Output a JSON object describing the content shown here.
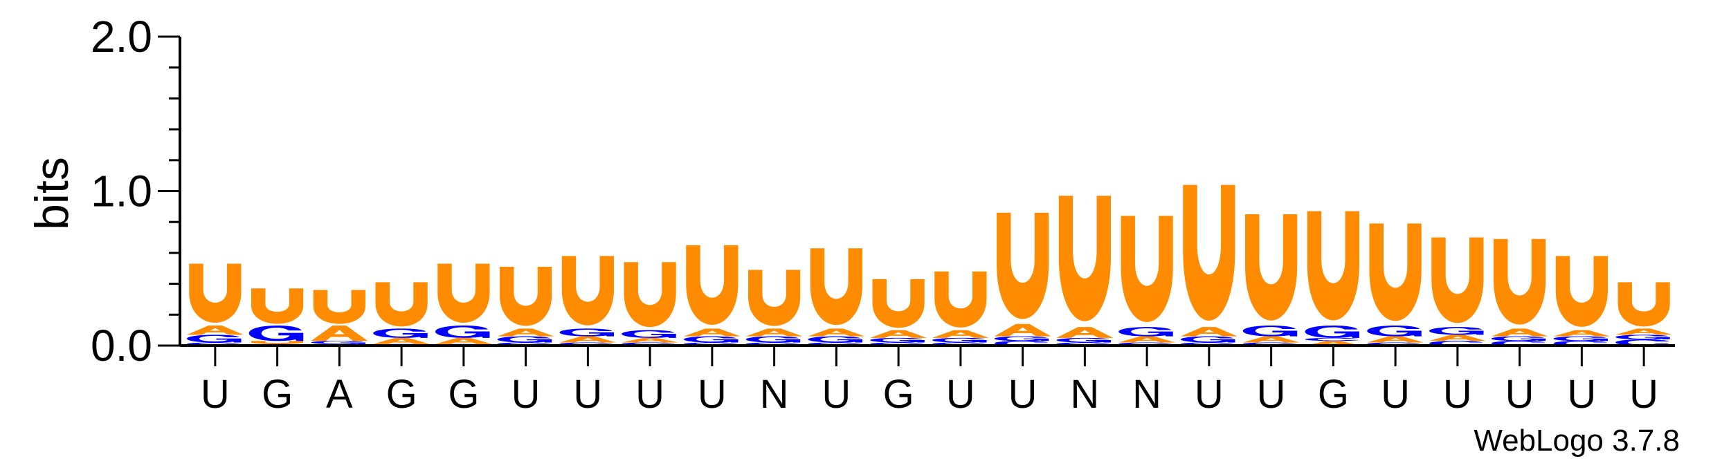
{
  "chart_data": {
    "type": "sequence-logo",
    "ylabel": "bits",
    "ylim": [
      0,
      2
    ],
    "yticks": [
      "0.0",
      "1.0",
      "2.0"
    ],
    "xticks": [
      "U",
      "G",
      "A",
      "G",
      "G",
      "U",
      "U",
      "U",
      "U",
      "N",
      "U",
      "G",
      "U",
      "U",
      "N",
      "N",
      "U",
      "U",
      "G",
      "U",
      "U",
      "U",
      "U",
      "U"
    ],
    "colors": {
      "U": "#ff8c00",
      "A": "#ff8c00",
      "G": "#0000ff",
      "C": "#0000ff"
    },
    "positions": [
      [
        [
          "C",
          0.02
        ],
        [
          "G",
          0.05
        ],
        [
          "A",
          0.06
        ],
        [
          "U",
          0.4
        ]
      ],
      [
        [
          "C",
          0.01
        ],
        [
          "U",
          0.02
        ],
        [
          "G",
          0.1
        ],
        [
          "U",
          0.24
        ]
      ],
      [
        [
          "C",
          0.01
        ],
        [
          "G",
          0.02
        ],
        [
          "A",
          0.1
        ],
        [
          "U",
          0.23
        ]
      ],
      [
        [
          "C",
          0.01
        ],
        [
          "A",
          0.04
        ],
        [
          "G",
          0.06
        ],
        [
          "U",
          0.3
        ]
      ],
      [
        [
          "C",
          0.01
        ],
        [
          "A",
          0.04
        ],
        [
          "G",
          0.08
        ],
        [
          "U",
          0.4
        ]
      ],
      [
        [
          "C",
          0.02
        ],
        [
          "G",
          0.04
        ],
        [
          "A",
          0.05
        ],
        [
          "U",
          0.4
        ]
      ],
      [
        [
          "C",
          0.02
        ],
        [
          "A",
          0.04
        ],
        [
          "G",
          0.05
        ],
        [
          "U",
          0.47
        ]
      ],
      [
        [
          "C",
          0.02
        ],
        [
          "A",
          0.03
        ],
        [
          "G",
          0.05
        ],
        [
          "U",
          0.44
        ]
      ],
      [
        [
          "C",
          0.02
        ],
        [
          "G",
          0.04
        ],
        [
          "A",
          0.05
        ],
        [
          "U",
          0.54
        ]
      ],
      [
        [
          "C",
          0.02
        ],
        [
          "G",
          0.04
        ],
        [
          "A",
          0.05
        ],
        [
          "U",
          0.38
        ]
      ],
      [
        [
          "C",
          0.02
        ],
        [
          "G",
          0.04
        ],
        [
          "A",
          0.05
        ],
        [
          "U",
          0.52
        ]
      ],
      [
        [
          "C",
          0.02
        ],
        [
          "G",
          0.03
        ],
        [
          "A",
          0.05
        ],
        [
          "U",
          0.33
        ]
      ],
      [
        [
          "C",
          0.02
        ],
        [
          "G",
          0.03
        ],
        [
          "A",
          0.05
        ],
        [
          "U",
          0.38
        ]
      ],
      [
        [
          "C",
          0.03
        ],
        [
          "G",
          0.03
        ],
        [
          "A",
          0.08
        ],
        [
          "U",
          0.72
        ]
      ],
      [
        [
          "C",
          0.02
        ],
        [
          "G",
          0.03
        ],
        [
          "A",
          0.07
        ],
        [
          "U",
          0.85
        ]
      ],
      [
        [
          "C",
          0.02
        ],
        [
          "A",
          0.04
        ],
        [
          "G",
          0.06
        ],
        [
          "U",
          0.72
        ]
      ],
      [
        [
          "C",
          0.02
        ],
        [
          "G",
          0.04
        ],
        [
          "A",
          0.06
        ],
        [
          "U",
          0.92
        ]
      ],
      [
        [
          "C",
          0.02
        ],
        [
          "A",
          0.04
        ],
        [
          "G",
          0.07
        ],
        [
          "U",
          0.72
        ]
      ],
      [
        [
          "A",
          0.03
        ],
        [
          "C",
          0.02
        ],
        [
          "G",
          0.08
        ],
        [
          "U",
          0.74
        ]
      ],
      [
        [
          "C",
          0.02
        ],
        [
          "A",
          0.04
        ],
        [
          "G",
          0.07
        ],
        [
          "U",
          0.66
        ]
      ],
      [
        [
          "C",
          0.03
        ],
        [
          "A",
          0.04
        ],
        [
          "G",
          0.05
        ],
        [
          "U",
          0.58
        ]
      ],
      [
        [
          "C",
          0.03
        ],
        [
          "G",
          0.03
        ],
        [
          "A",
          0.05
        ],
        [
          "U",
          0.58
        ]
      ],
      [
        [
          "C",
          0.03
        ],
        [
          "G",
          0.03
        ],
        [
          "A",
          0.04
        ],
        [
          "U",
          0.48
        ]
      ],
      [
        [
          "C",
          0.04
        ],
        [
          "G",
          0.03
        ],
        [
          "A",
          0.04
        ],
        [
          "U",
          0.3
        ]
      ]
    ]
  },
  "footer": {
    "credit": "WebLogo 3.7.8"
  }
}
